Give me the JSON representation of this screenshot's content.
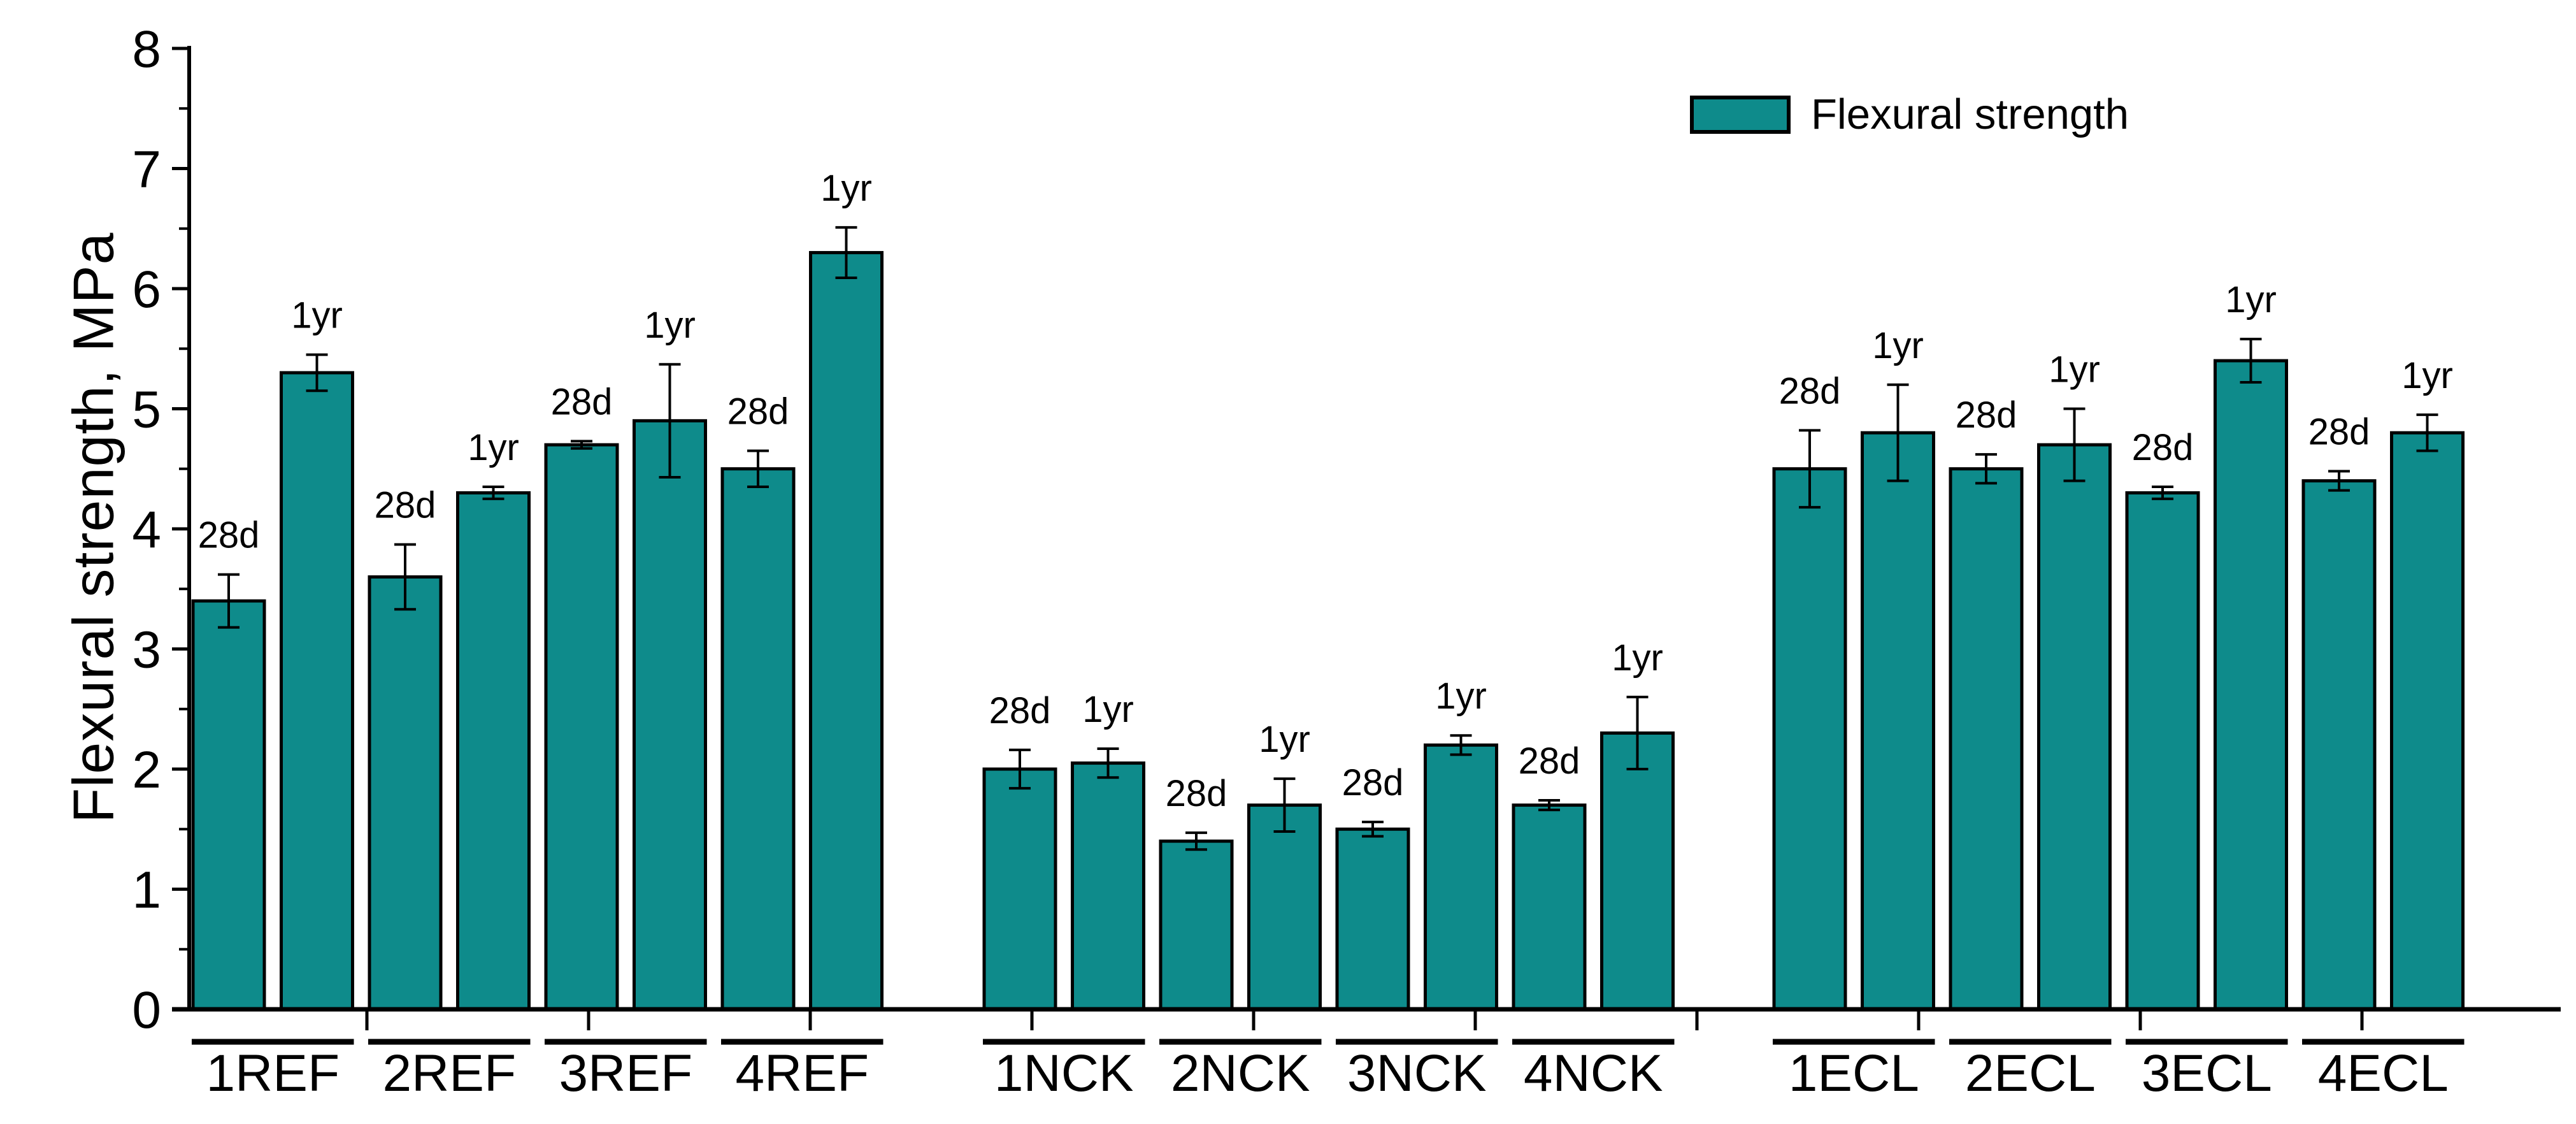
{
  "chart_data": {
    "type": "bar",
    "title": "",
    "xlabel": "",
    "ylabel": "Flexural strength, MPa",
    "ylim": [
      0,
      8
    ],
    "y_ticks": [
      0,
      1,
      2,
      3,
      4,
      5,
      6,
      7,
      8
    ],
    "y_minor_step": 0.5,
    "grid": "off",
    "legend": {
      "label": "Flexural strength",
      "position": "top-right"
    },
    "bar_color": "#0E8B8B",
    "bar_border_color": "#000000",
    "background_color": "#FFFFFF",
    "text_color": "#000000",
    "units": "MPa",
    "age_labels": [
      "28d",
      "1yr"
    ],
    "sections": [
      {
        "name": "REF",
        "groups": [
          {
            "label": "1REF",
            "bars": [
              {
                "label": "28d",
                "value": 3.4,
                "error": 0.22
              },
              {
                "label": "1yr",
                "value": 5.3,
                "error": 0.15
              }
            ]
          },
          {
            "label": "2REF",
            "bars": [
              {
                "label": "28d",
                "value": 3.6,
                "error": 0.27
              },
              {
                "label": "1yr",
                "value": 4.3,
                "error": 0.05
              }
            ]
          },
          {
            "label": "3REF",
            "bars": [
              {
                "label": "28d",
                "value": 4.7,
                "error": 0.03
              },
              {
                "label": "1yr",
                "value": 4.9,
                "error": 0.47
              }
            ]
          },
          {
            "label": "4REF",
            "bars": [
              {
                "label": "28d",
                "value": 4.5,
                "error": 0.15
              },
              {
                "label": "1yr",
                "value": 6.3,
                "error": 0.21
              }
            ]
          }
        ]
      },
      {
        "name": "NCK",
        "groups": [
          {
            "label": "1NCK",
            "bars": [
              {
                "label": "28d",
                "value": 2.0,
                "error": 0.16
              },
              {
                "label": "1yr",
                "value": 2.05,
                "error": 0.12
              }
            ]
          },
          {
            "label": "2NCK",
            "bars": [
              {
                "label": "28d",
                "value": 1.4,
                "error": 0.07
              },
              {
                "label": "1yr",
                "value": 1.7,
                "error": 0.22
              }
            ]
          },
          {
            "label": "3NCK",
            "bars": [
              {
                "label": "28d",
                "value": 1.5,
                "error": 0.06
              },
              {
                "label": "1yr",
                "value": 2.2,
                "error": 0.08
              }
            ]
          },
          {
            "label": "4NCK",
            "bars": [
              {
                "label": "28d",
                "value": 1.7,
                "error": 0.04
              },
              {
                "label": "1yr",
                "value": 2.3,
                "error": 0.3
              }
            ]
          }
        ]
      },
      {
        "name": "ECL",
        "groups": [
          {
            "label": "1ECL",
            "bars": [
              {
                "label": "28d",
                "value": 4.5,
                "error": 0.32
              },
              {
                "label": "1yr",
                "value": 4.8,
                "error": 0.4
              }
            ]
          },
          {
            "label": "2ECL",
            "bars": [
              {
                "label": "28d",
                "value": 4.5,
                "error": 0.12
              },
              {
                "label": "1yr",
                "value": 4.7,
                "error": 0.3
              }
            ]
          },
          {
            "label": "3ECL",
            "bars": [
              {
                "label": "28d",
                "value": 4.3,
                "error": 0.05
              },
              {
                "label": "1yr",
                "value": 5.4,
                "error": 0.18
              }
            ]
          },
          {
            "label": "4ECL",
            "bars": [
              {
                "label": "28d",
                "value": 4.4,
                "error": 0.08
              },
              {
                "label": "1yr",
                "value": 4.8,
                "error": 0.15
              }
            ]
          }
        ]
      }
    ]
  }
}
